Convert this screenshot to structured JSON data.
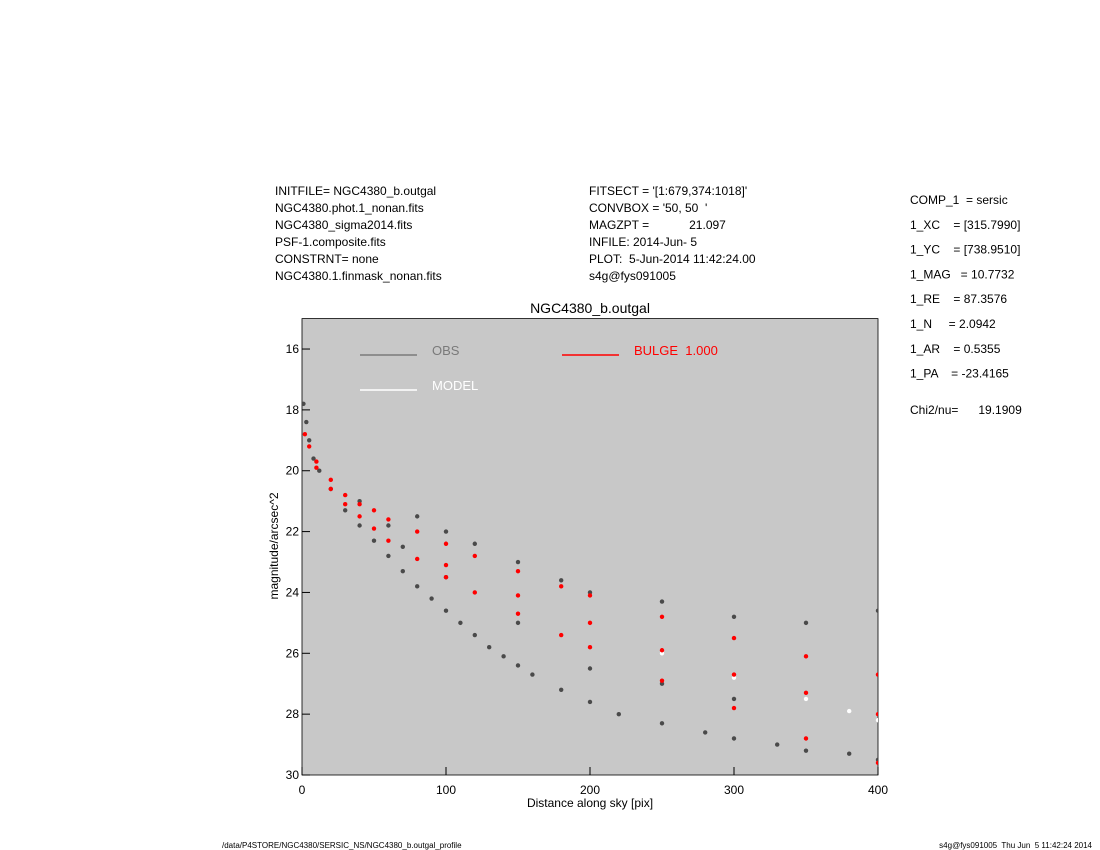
{
  "header": {
    "left": [
      "INITFILE= NGC4380_b.outgal",
      "NGC4380.phot.1_nonan.fits",
      "NGC4380_sigma2014.fits",
      "PSF-1.composite.fits",
      "CONSTRNT= none",
      "NGC4380.1.finmask_nonan.fits"
    ],
    "middle": [
      "FITSECT = '[1:679,374:1018]'",
      "CONVBOX = '50, 50  '",
      "MAGZPT =            21.097",
      "INFILE: 2014-Jun- 5",
      "PLOT:  5-Jun-2014 11:42:24.00",
      "s4g@fys091005"
    ],
    "params": [
      "COMP_1  = sersic",
      "1_XC    = [315.7990]",
      "1_YC    = [738.9510]",
      "1_MAG   = 10.7732",
      "1_RE    = 87.3576",
      "1_N     = 2.0942",
      "1_AR    = 0.5355",
      "1_PA    = -23.4165",
      "Chi2/nu=      19.1909"
    ]
  },
  "footer": {
    "left": "/data/P4STORE/NGC4380/SERSIC_NS/NGC4380_b.outgal_profile",
    "right": "s4g@fys091005  Thu Jun  5 11:42:24 2014"
  },
  "chart_data": {
    "type": "scatter",
    "title": "NGC4380_b.outgal",
    "x_label": "Distance along sky [pix]",
    "y_label": "magnitude/arcsec^2",
    "xlim": [
      0,
      400
    ],
    "xticks": [
      0,
      100,
      200,
      300,
      400
    ],
    "ylim": [
      15,
      30
    ],
    "yticks": [
      16,
      18,
      20,
      22,
      24,
      26,
      28,
      30
    ],
    "y_inverted": true,
    "background": "#c8c8c8",
    "series": [
      {
        "name": "OBS",
        "color": "#4a4a4a",
        "legend_color": "#7a7a7a",
        "x": [
          1,
          3,
          5,
          8,
          12,
          20,
          30,
          40,
          50,
          60,
          70,
          80,
          90,
          100,
          110,
          120,
          130,
          140,
          150,
          160,
          180,
          200,
          220,
          250,
          280,
          300,
          330,
          350,
          380,
          400,
          60,
          80,
          100,
          120,
          150,
          180,
          200,
          250,
          300,
          350,
          400,
          40,
          70,
          100,
          150,
          200,
          250,
          300
        ],
        "values": [
          17.8,
          18.4,
          19.0,
          19.6,
          20.0,
          20.6,
          21.3,
          21.8,
          22.3,
          22.8,
          23.3,
          23.8,
          24.2,
          24.6,
          25.0,
          25.4,
          25.8,
          26.1,
          26.4,
          26.7,
          27.2,
          27.6,
          28.0,
          28.3,
          28.6,
          28.8,
          29.0,
          29.2,
          29.3,
          29.5,
          21.8,
          21.5,
          22.0,
          22.4,
          23.0,
          23.6,
          24.0,
          24.3,
          24.8,
          25.0,
          24.6,
          21.0,
          22.5,
          23.5,
          25.0,
          26.5,
          27.0,
          27.5
        ]
      },
      {
        "name": "MODEL",
        "color": "#ffffff",
        "legend_color": "#ffffff",
        "x": [
          250,
          300,
          350,
          380,
          400
        ],
        "values": [
          26.0,
          26.8,
          27.5,
          27.9,
          28.2
        ]
      },
      {
        "name": "BULGE  1.000",
        "color": "#ff0000",
        "legend_color": "#ff0000",
        "x": [
          2,
          5,
          10,
          20,
          30,
          40,
          50,
          60,
          80,
          100,
          120,
          150,
          180,
          200,
          250,
          300,
          350,
          400,
          10,
          20,
          30,
          40,
          50,
          60,
          80,
          100,
          120,
          150,
          180,
          200,
          250,
          300,
          350,
          400,
          100,
          150,
          200,
          250,
          300,
          350,
          400
        ],
        "values": [
          18.8,
          19.2,
          19.7,
          20.3,
          20.8,
          21.1,
          21.3,
          21.6,
          22.0,
          22.4,
          22.8,
          23.3,
          23.8,
          24.1,
          24.8,
          25.5,
          26.1,
          26.7,
          19.9,
          20.6,
          21.1,
          21.5,
          21.9,
          22.3,
          22.9,
          23.5,
          24.0,
          24.7,
          25.4,
          25.8,
          26.9,
          27.8,
          28.8,
          29.6,
          23.1,
          24.1,
          25.0,
          25.9,
          26.7,
          27.3,
          28.0
        ]
      }
    ]
  }
}
